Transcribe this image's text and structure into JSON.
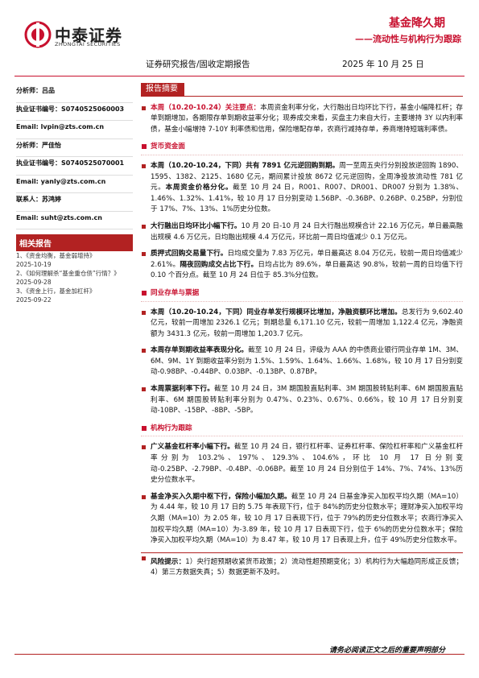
{
  "header": {
    "logo_cn": "中泰证券",
    "logo_en": "ZHONGTAI SECURITIES",
    "title": "基金降久期",
    "subtitle": "——流动性与机构行为跟踪",
    "report_type": "证券研究报告/固收定期报告",
    "date": "2025 年 10 月 25 日"
  },
  "sidebar": {
    "lines": [
      "分析师：吕品",
      "执业证书编号：S0740525060003",
      "Email: lvpin@zts.com.cn",
      "分析师：严佳怡",
      "执业证书编号：S0740525070001",
      "Email: yanly@zts.com.cn",
      "联系人：苏鸿婷",
      "Email: suht@zts.com.cn"
    ],
    "related": {
      "title": "相关报告",
      "items": [
        {
          "title": "1、《资金均衡，基金弱增持》",
          "date": "2025-10-19"
        },
        {
          "title": "2、《如何理解杀“基金重仓债”行情？》",
          "date": "2025-09-28"
        },
        {
          "title": "3、《资金上行，基金加杠杆》",
          "date": "2025-09-22"
        }
      ]
    }
  },
  "summary": {
    "title": "报告摘要",
    "intro": {
      "lead": "本周（10.20-10.24）关注要点：",
      "text": "本周资金利率分化，大行融出日均环比下行，基金小幅降杠杆；存单到期增加，各期限存单到期收益率分化；现券成交来看，买盘主力来自大行，主要增持 3Y 以内利率债，基金小幅增持 7-10Y 利率债和信用，保险增配存单，农商行减持存单，券商增持短端利率债。"
    },
    "sections": [
      {
        "heading": "货币资金面",
        "items": [
          {
            "parts": [
              "本周（10.20-10.24，下同）共有 7891 亿元逆回购到期。",
              "周一至周五央行分别投放逆回购 1890、1595、1382、2125、1680 亿元，期间累计投放 8672 亿元逆回购，全周净投放流动性 781 亿元。",
              "本周资金价格分化。",
              "截至 10 月 24 日，R001、R007、DR001、DR007 分别为 1.38%、1.46%、1.32%、1.41%，较 10 月 17 日分别变动 1.56BP、-0.36BP、0.26BP、0.25BP，分别位于 17%、7%、13%、1%历史分位数。"
            ]
          },
          {
            "parts": [
              "大行融出日均环比小幅下行。",
              "10 月 20 日-10 月 24 日大行融出规模合计 22.16 万亿元，单日最高融出规模 4.6 万亿元，日均融出规模 4.4 万亿元，环比前一周日均值减少 0.1 万亿元。"
            ]
          },
          {
            "parts": [
              "质押式回购交易量下行。",
              "日均成交量为 7.83 万亿元，单日最高达 8.04 万亿元，较前一周日均值减少 2.61%。",
              "隔夜回购成交占比下行。",
              "日均占比为 89.6%，单日最高达 90.8%，较前一周的日均值下行 0.10 个百分点。截至 10 月 24 日位于 85.3%分位数。"
            ]
          }
        ]
      },
      {
        "heading": "同业存单与票据",
        "items": [
          {
            "parts": [
              "本周（10.20-10.24，下同）同业存单发行规模环比增加，净融资额环比增加。",
              "总发行为 9,602.40 亿元，较前一周增加 2326.1 亿元；到期总量 6,171.10 亿元，较前一周增加 1,122.4 亿元，净融资额为 3431.3 亿元，较前一周增加 1,203.7 亿元。"
            ]
          },
          {
            "parts": [
              "本周存单到期收益率表现分化。",
              "截至 10 月 24 日，评级为 AAA 的中债商业银行同业存单 1M、3M、6M、9M、1Y 到期收益率分别为 1.5%、1.59%、1.64%、1.66%、1.68%，较 10 月 17 日分别变动-0.98BP、-0.44BP、0.03BP、-0.13BP、0.87BP。"
            ]
          },
          {
            "parts": [
              "本周票据利率下行。",
              "截至 10 月 24 日，3M 期国股直贴利率、3M 期国股转贴利率、6M 期国股直贴利率、6M 期国股转贴利率分别为 0.47%、0.23%、0.67%、0.66%，较 10 月 17 日分别变动-10BP、-15BP、-8BP、-5BP。"
            ]
          }
        ]
      },
      {
        "heading": "机构行为跟踪",
        "items": [
          {
            "parts": [
              "广义基金杠杆率小幅下行。",
              "截至 10 月 24 日，银行杠杆率、证券杠杆率、保险杠杆率和广义基金杠杆率分别为 103.2%、197%、129.3%、104.6%，环比 10 月 17 日分别变动-0.25BP、-2.79BP、-0.4BP、-0.06BP。截至 10 月 24 日分别位于 14%、7%、74%、13%历史分位数水平。"
            ]
          },
          {
            "parts": [
              "基金净买入久期中枢下行，保险小幅加久期。",
              "截至 10 月 24 日基金净买入加权平均久期（MA=10）为 4.44 年，较 10 月 17 日的 5.75 年表现下行，位于 84%的历史分位数水平；理财净买入加权平均久期（MA=10）为 2.05 年，较 10 月 17 日表现下行，位于 79%的历史分位数水平；农商行净买入加权平均久期（MA=10）为-3.89 年，较 10 月 17 日表现下行，位于 6%的历史分位数水平；保险净买入加权平均久期（MA=10）为 8.47 年，较 10 月 17 日表现上升，位于 49%历史分位数水平。"
            ]
          }
        ]
      }
    ],
    "risk": {
      "lead": "风险提示：",
      "text": "1）央行超预期收紧货币政策；2）流动性超预期变化；3）机构行为大幅趋同形成正反馈；4）第三方数据失真；5）数据更新不及时。"
    }
  },
  "footer": {
    "note": "请务必阅读正文之后的重要声明部分"
  }
}
